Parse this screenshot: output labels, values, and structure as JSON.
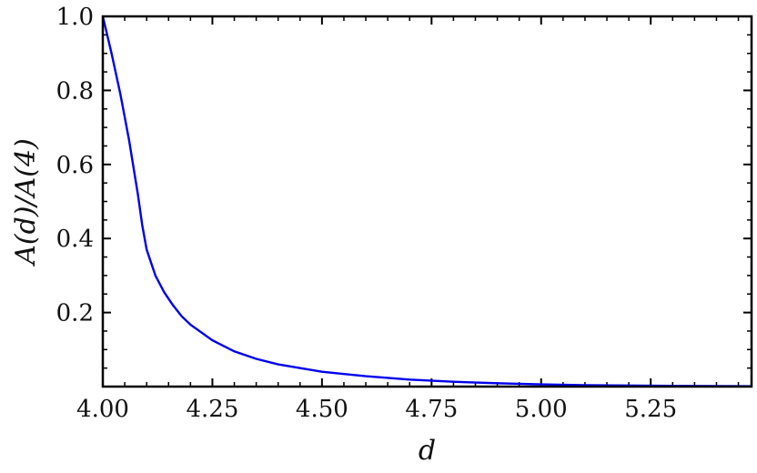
{
  "chart_data": {
    "type": "line",
    "xlabel": "d",
    "ylabel": "A(d)/A(4)",
    "xlim": [
      4.0,
      5.48
    ],
    "ylim": [
      0.0,
      1.0
    ],
    "grid": false,
    "x_ticks": [
      4.0,
      4.25,
      4.5,
      4.75,
      5.0,
      5.25
    ],
    "x_tick_labels": [
      "4.00",
      "4.25",
      "4.50",
      "4.75",
      "5.00",
      "5.25"
    ],
    "x_minor_step": 0.05,
    "y_ticks": [
      0.2,
      0.4,
      0.6,
      0.8,
      1.0
    ],
    "y_tick_labels": [
      "0.2",
      "0.4",
      "0.6",
      "0.8",
      "1.0"
    ],
    "y_minor_step": 0.05,
    "line_color": "#0000ee",
    "series": [
      {
        "x": [
          4.0,
          4.02,
          4.04,
          4.06,
          4.08,
          4.09,
          4.1,
          4.12,
          4.14,
          4.16,
          4.18,
          4.2,
          4.25,
          4.3,
          4.35,
          4.4,
          4.5,
          4.6,
          4.7,
          4.8,
          4.9,
          5.0,
          5.1,
          5.2,
          5.3,
          5.4,
          5.48
        ],
        "values": [
          1.0,
          0.9,
          0.79,
          0.665,
          0.52,
          0.435,
          0.37,
          0.3,
          0.255,
          0.22,
          0.19,
          0.167,
          0.125,
          0.095,
          0.075,
          0.06,
          0.04,
          0.028,
          0.019,
          0.013,
          0.009,
          0.006,
          0.004,
          0.003,
          0.002,
          0.0015,
          0.001
        ]
      }
    ]
  }
}
